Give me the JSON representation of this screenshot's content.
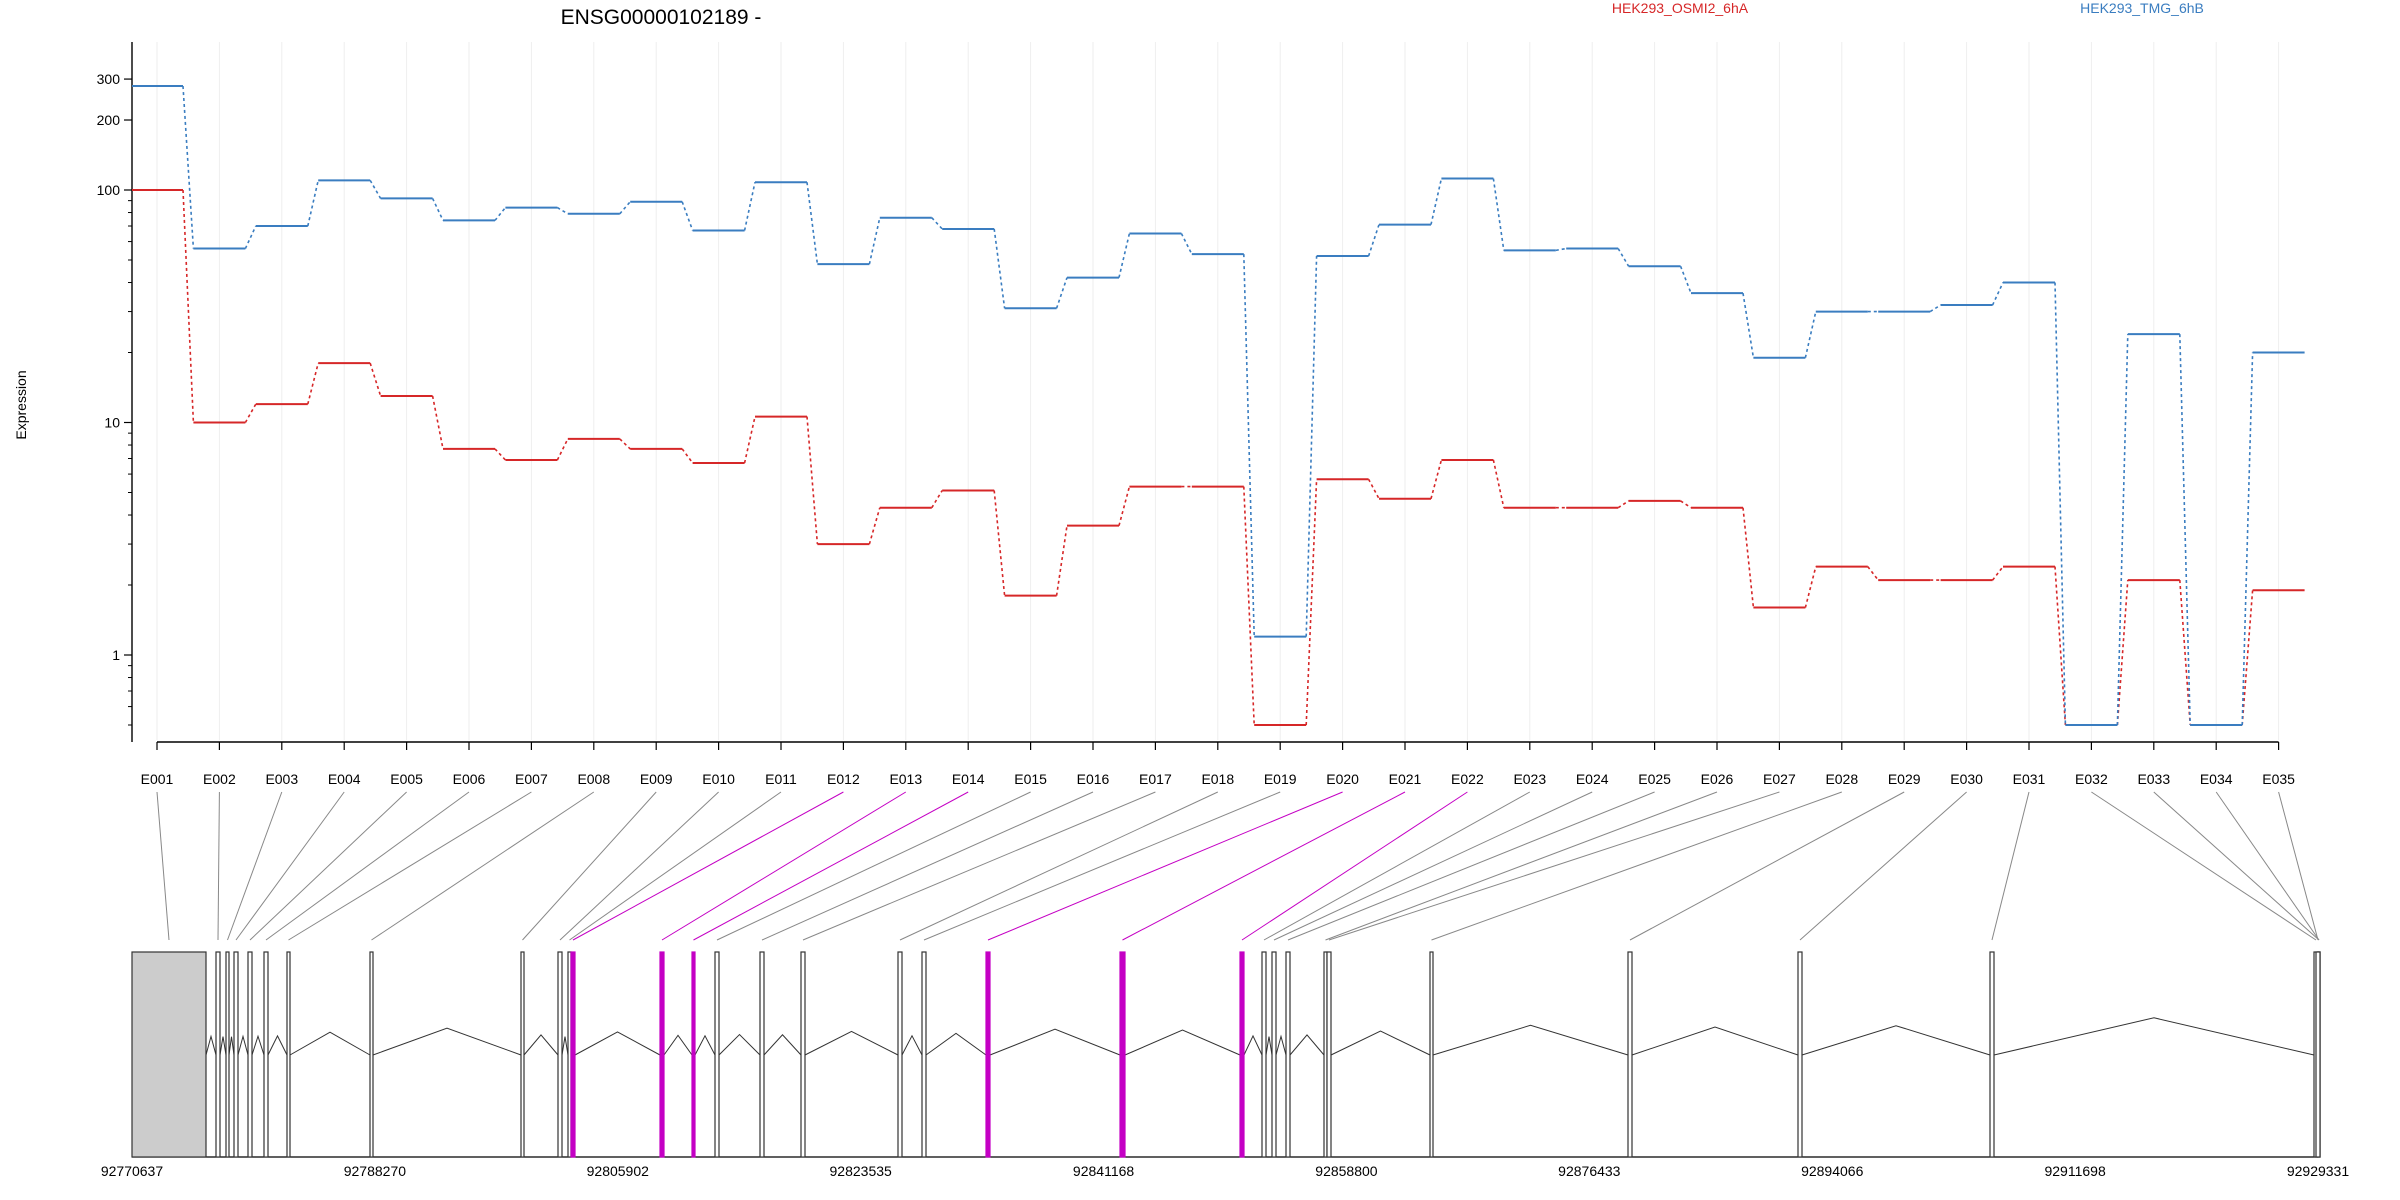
{
  "chart_data": {
    "type": "line",
    "title": "ENSG00000102189 -",
    "ylabel": "Expression",
    "y_scale": "log",
    "ylim": [
      0.4,
      400
    ],
    "y_ticks": [
      1,
      10,
      100,
      200,
      300
    ],
    "y_tick_labels": [
      "1",
      "10",
      "100",
      "200",
      "300"
    ],
    "grid": "vertical lines at each exon",
    "categories": [
      "E001",
      "E002",
      "E003",
      "E004",
      "E005",
      "E006",
      "E007",
      "E008",
      "E009",
      "E010",
      "E011",
      "E012",
      "E013",
      "E014",
      "E015",
      "E016",
      "E017",
      "E018",
      "E019",
      "E020",
      "E021",
      "E022",
      "E023",
      "E024",
      "E025",
      "E026",
      "E027",
      "E028",
      "E029",
      "E030",
      "E031",
      "E032",
      "E033",
      "E034",
      "E035"
    ],
    "series": [
      {
        "name": "HEK293_OSMI2_6hA",
        "color": "#d62728",
        "values": [
          100,
          10,
          12,
          18,
          13,
          7.7,
          6.9,
          8.5,
          7.7,
          6.7,
          10.6,
          3.0,
          4.3,
          5.1,
          1.8,
          3.6,
          5.3,
          5.3,
          0.5,
          5.7,
          4.7,
          6.9,
          4.3,
          4.3,
          4.6,
          4.3,
          1.6,
          2.4,
          2.1,
          2.1,
          2.4,
          0.5,
          2.1,
          0.5,
          1.9
        ]
      },
      {
        "name": "HEK293_TMG_6hB",
        "color": "#3a7dc0",
        "values": [
          280,
          56,
          70,
          110,
          92,
          74,
          84,
          79,
          89,
          67,
          108,
          48,
          76,
          68,
          31,
          42,
          65,
          53,
          1.2,
          52,
          71,
          112,
          55,
          56,
          47,
          36,
          19,
          30,
          30,
          32,
          40,
          0.5,
          24,
          0.5,
          20
        ]
      }
    ],
    "gene_model": {
      "type": "exon structure",
      "coordinate_labels": [
        "92770637",
        "92788270",
        "92805902",
        "92823535",
        "92841168",
        "92858800",
        "92876433",
        "92894066",
        "92911698",
        "92929331"
      ],
      "coord_min": 92770637,
      "coord_max": 92929331,
      "highlighted_exons": [
        "E012",
        "E013",
        "E014",
        "E020",
        "E021",
        "E022"
      ],
      "exon_color": "#333333",
      "highlight_color": "#c400c4",
      "utr_fill": "#cccccc"
    }
  }
}
